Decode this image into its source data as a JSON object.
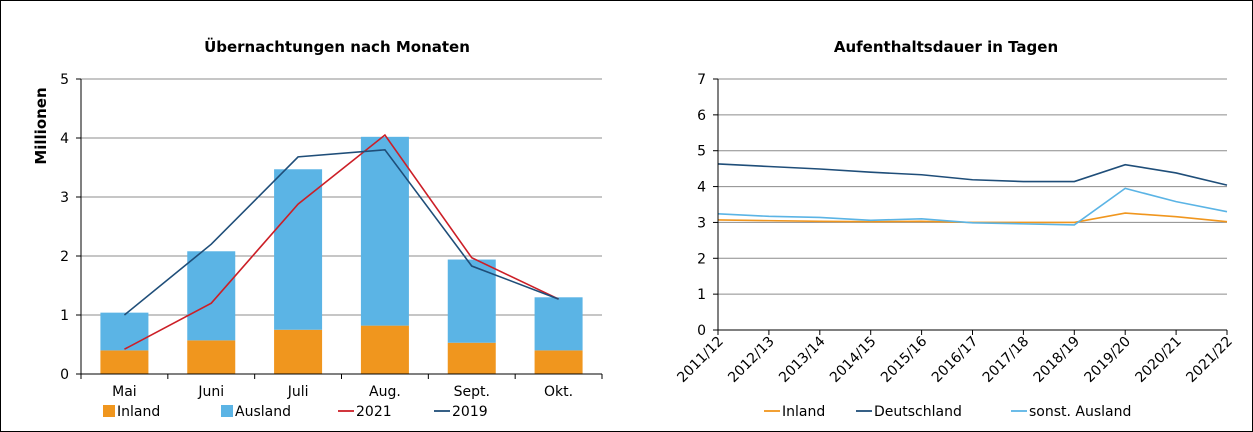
{
  "chart_data": [
    {
      "type": "bar",
      "stacked": true,
      "title": "Übernachtungen nach Monaten",
      "ylabel": "Millionen",
      "xlabel": "",
      "ylim": [
        0,
        5
      ],
      "yticks": [
        "0",
        "1",
        "2",
        "3",
        "4",
        "5"
      ],
      "grid": true,
      "legend_position": "bottom",
      "categories": [
        "Mai",
        "Juni",
        "Juli",
        "Aug.",
        "Sept.",
        "Okt."
      ],
      "bar_series": [
        {
          "name": "Inland",
          "color": "#f0961e",
          "values": [
            0.4,
            0.57,
            0.75,
            0.82,
            0.53,
            0.4
          ]
        },
        {
          "name": "Ausland",
          "color": "#5bb4e5",
          "values": [
            0.64,
            1.51,
            2.72,
            3.2,
            1.41,
            0.9
          ]
        }
      ],
      "line_series": [
        {
          "name": "2021",
          "color": "#cc1f27",
          "values": [
            0.42,
            1.2,
            2.88,
            4.05,
            1.97,
            1.27
          ]
        },
        {
          "name": "2019",
          "color": "#1f4e79",
          "values": [
            1.0,
            2.2,
            3.68,
            3.8,
            1.83,
            1.27
          ]
        }
      ]
    },
    {
      "type": "line",
      "title": "Aufenthaltsdauer in Tagen",
      "xlabel": "",
      "ylabel": "",
      "ylim": [
        0,
        7
      ],
      "yticks": [
        "0",
        "1",
        "2",
        "3",
        "4",
        "5",
        "6",
        "7"
      ],
      "grid": true,
      "legend_position": "bottom",
      "x": [
        "2011/12",
        "2012/13",
        "2013/14",
        "2014/15",
        "2015/16",
        "2016/17",
        "2017/18",
        "2018/19",
        "2019/20",
        "2020/21",
        "2021/22"
      ],
      "series": [
        {
          "name": "Inland",
          "color": "#f0961e",
          "values": [
            3.07,
            3.05,
            3.03,
            3.02,
            3.03,
            3.0,
            3.0,
            3.0,
            3.26,
            3.16,
            3.02
          ]
        },
        {
          "name": "Deutschland",
          "color": "#1f4e79",
          "values": [
            4.63,
            4.56,
            4.49,
            4.4,
            4.33,
            4.19,
            4.14,
            4.14,
            4.61,
            4.38,
            4.04
          ]
        },
        {
          "name": "sonst. Ausland",
          "color": "#5bb4e5",
          "values": [
            3.24,
            3.17,
            3.14,
            3.06,
            3.1,
            2.99,
            2.96,
            2.93,
            3.95,
            3.58,
            3.3
          ]
        }
      ]
    }
  ]
}
